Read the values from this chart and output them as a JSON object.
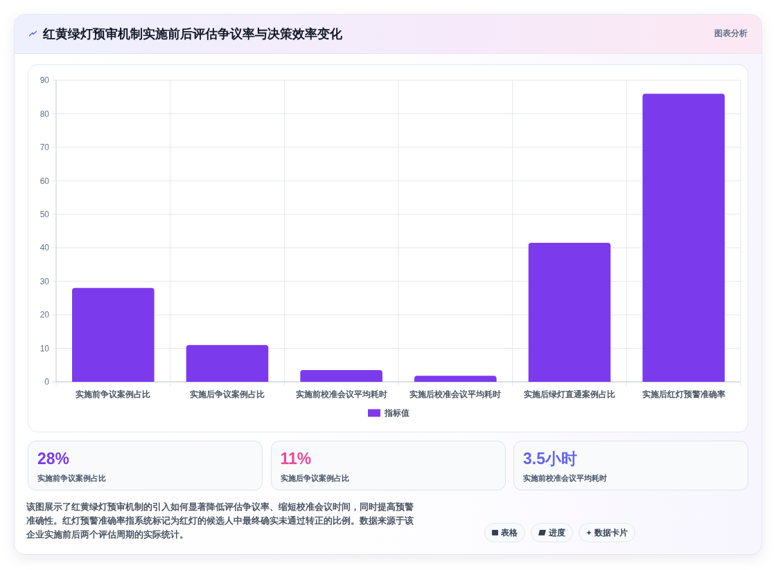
{
  "chart_data": [
    {
      "type": "bar",
      "title": "红黄绿灯预审机制实施前后评估争议率与决策效率变化",
      "categories": [
        "实施前争议案例占比",
        "实施后争议案例占比",
        "实施前校准会议平均耗时",
        "实施后校准会议平均耗时",
        "实施后绿灯直通案例占比",
        "实施后红灯预警准确率"
      ],
      "series": [
        {
          "name": "指标值",
          "color": "#7c3aed",
          "values": [
            28,
            11,
            3.5,
            1.8,
            41.5,
            86
          ]
        }
      ],
      "ylim": [
        0,
        90
      ],
      "yticks": [
        0,
        10,
        20,
        30,
        40,
        50,
        60,
        70,
        80,
        90
      ],
      "grid": true,
      "legend": "bottom",
      "annotations": [
        "图表分析",
        "该图展示了红黄绿灯预审机制的引入如何显著降低评估争议率、缩短校准会议时间，同时提高预警准确性。红灯预警准确率指系统标记为红灯的候选人中最终确实未通过转正的比例。数据来源于该企业实施前后两个评估周期的实际统计。",
        "表格",
        "进度",
        "数据卡片"
      ]
    },
    {
      "type": "other",
      "title": "28%",
      "subtitle": "实施前争议案例占比",
      "color": "#7c3aed"
    },
    {
      "type": "other",
      "title": "11%",
      "subtitle": "实施后争议案例占比",
      "color": "#ec4899"
    },
    {
      "type": "other",
      "title": "3.5小时",
      "subtitle": "实施前校准会议平均耗时",
      "color": "#6366f1"
    }
  ]
}
